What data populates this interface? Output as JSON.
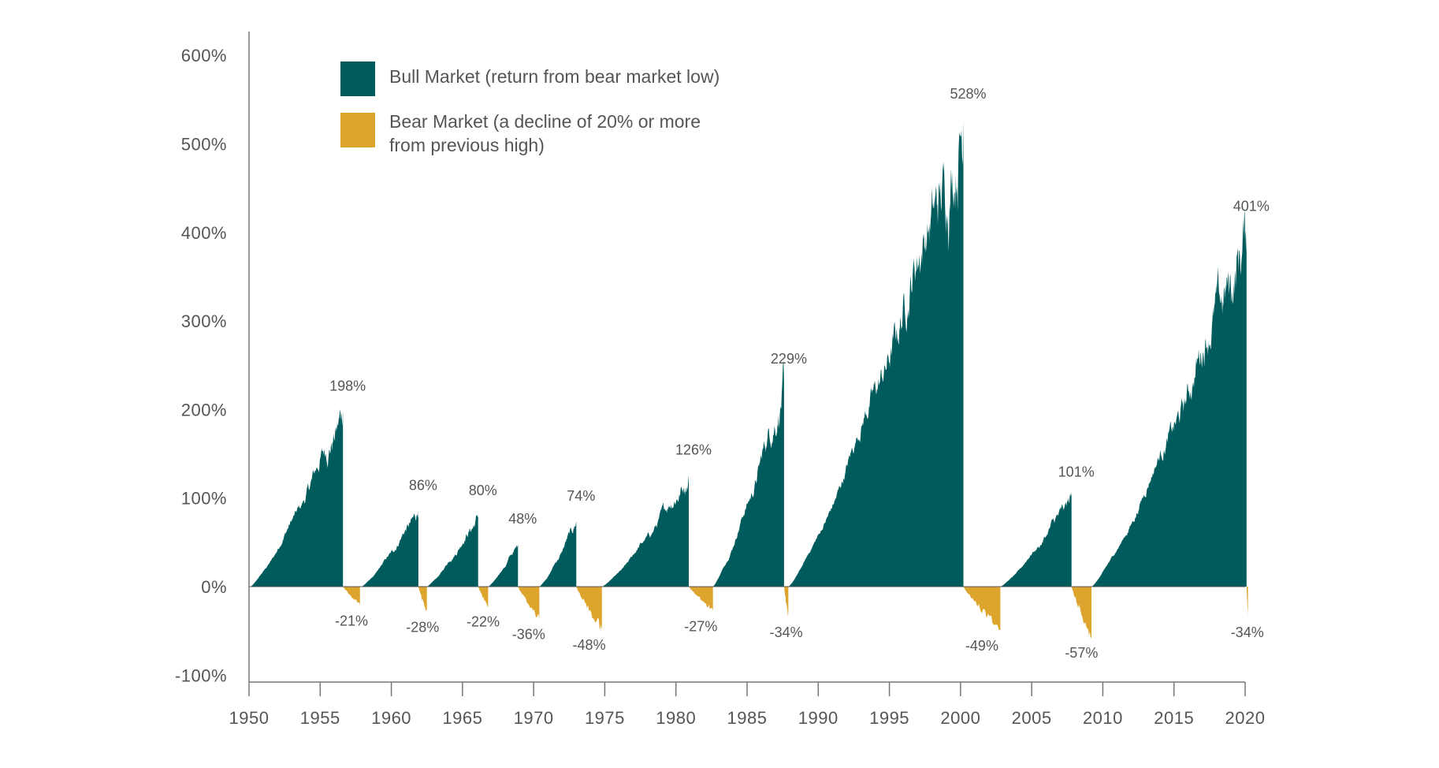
{
  "chart_data": {
    "type": "area",
    "title": "",
    "xlabel": "",
    "ylabel": "",
    "xlim": [
      1950,
      2020
    ],
    "ylim": [
      -100,
      600
    ],
    "x_ticks": [
      1950,
      1955,
      1960,
      1965,
      1970,
      1975,
      1980,
      1985,
      1990,
      1995,
      2000,
      2005,
      2010,
      2015,
      2020
    ],
    "y_ticks": [
      -100,
      0,
      100,
      200,
      300,
      400,
      500,
      600
    ],
    "y_tick_labels": [
      "-100%",
      "0%",
      "100%",
      "200%",
      "300%",
      "400%",
      "500%",
      "600%"
    ],
    "grid": false,
    "legend_position": "top-left",
    "colors": {
      "bull": "#005b5c",
      "bear": "#dda52e"
    },
    "series": [
      {
        "name": "Bull Market (return from bear market low)",
        "legend_lines": [
          "Bull Market (return from bear market low)"
        ],
        "color": "#005b5c"
      },
      {
        "name": "Bear Market (a decline of 20% or more from previous high)",
        "legend_lines": [
          "Bear Market (a decline of 20% or more",
          "from previous high)"
        ],
        "color": "#dda52e"
      }
    ],
    "bull_markets": [
      {
        "start": 1950.1,
        "end": 1956.6,
        "value": 198,
        "label": "198%"
      },
      {
        "start": 1957.9,
        "end": 1961.9,
        "value": 86,
        "label": "86%"
      },
      {
        "start": 1962.5,
        "end": 1966.1,
        "value": 80,
        "label": "80%"
      },
      {
        "start": 1966.8,
        "end": 1968.9,
        "value": 48,
        "label": "48%"
      },
      {
        "start": 1970.4,
        "end": 1973.0,
        "value": 74,
        "label": "74%"
      },
      {
        "start": 1974.8,
        "end": 1980.9,
        "value": 126,
        "label": "126%"
      },
      {
        "start": 1982.6,
        "end": 1987.6,
        "value": 229,
        "label": "229%"
      },
      {
        "start": 1987.9,
        "end": 2000.2,
        "value": 528,
        "label": "528%"
      },
      {
        "start": 2002.8,
        "end": 2007.8,
        "value": 101,
        "label": "101%"
      },
      {
        "start": 2009.2,
        "end": 2020.1,
        "value": 401,
        "label": "401%"
      }
    ],
    "bear_markets": [
      {
        "start": 1956.6,
        "end": 1957.8,
        "value": -21,
        "label": "-21%"
      },
      {
        "start": 1961.9,
        "end": 1962.5,
        "value": -28,
        "label": "-28%"
      },
      {
        "start": 1966.1,
        "end": 1966.8,
        "value": -22,
        "label": "-22%"
      },
      {
        "start": 1968.9,
        "end": 1970.4,
        "value": -36,
        "label": "-36%"
      },
      {
        "start": 1973.0,
        "end": 1974.8,
        "value": -48,
        "label": "-48%"
      },
      {
        "start": 1980.9,
        "end": 1982.6,
        "value": -27,
        "label": "-27%"
      },
      {
        "start": 1987.6,
        "end": 1987.9,
        "value": -34,
        "label": "-34%"
      },
      {
        "start": 2000.2,
        "end": 2002.8,
        "value": -49,
        "label": "-49%"
      },
      {
        "start": 2007.8,
        "end": 2009.2,
        "value": -57,
        "label": "-57%"
      },
      {
        "start": 2020.1,
        "end": 2020.2,
        "value": -34,
        "label": "-34%"
      }
    ]
  }
}
